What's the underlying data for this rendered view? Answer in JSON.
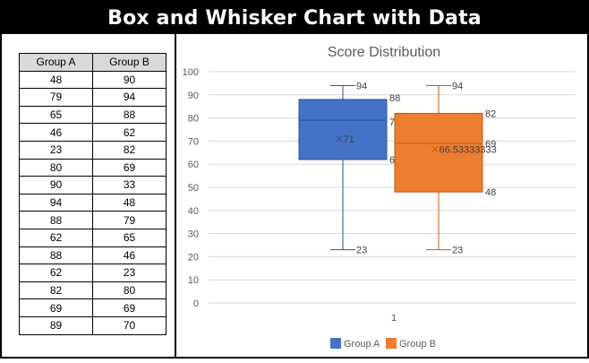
{
  "banner": {
    "title": "Box and Whisker Chart with Data"
  },
  "table": {
    "headers": [
      "Group A",
      "Group B"
    ],
    "rows": [
      [
        "48",
        "90"
      ],
      [
        "79",
        "94"
      ],
      [
        "65",
        "88"
      ],
      [
        "46",
        "62"
      ],
      [
        "23",
        "82"
      ],
      [
        "80",
        "69"
      ],
      [
        "90",
        "33"
      ],
      [
        "94",
        "48"
      ],
      [
        "88",
        "79"
      ],
      [
        "62",
        "65"
      ],
      [
        "88",
        "46"
      ],
      [
        "62",
        "23"
      ],
      [
        "82",
        "80"
      ],
      [
        "69",
        "69"
      ],
      [
        "89",
        "70"
      ]
    ]
  },
  "chart_data": {
    "type": "box",
    "title": "Score Distribution",
    "categories": [
      "1"
    ],
    "ylim": [
      0,
      100
    ],
    "yticks": [
      0,
      10,
      20,
      30,
      40,
      50,
      60,
      70,
      80,
      90,
      100
    ],
    "grid": true,
    "legend_position": "bottom",
    "series": [
      {
        "name": "Group A",
        "color": "#4472c4",
        "stroke": "#2f528f",
        "min": 23,
        "q1": 62,
        "median": 79,
        "q3": 88,
        "max": 94,
        "mean": 71,
        "labels": {
          "max": "94",
          "q3": "88",
          "median": "79",
          "q1": "62",
          "min": "23",
          "mean": "71"
        }
      },
      {
        "name": "Group B",
        "color": "#ed7d31",
        "stroke": "#c55a11",
        "min": 23,
        "q1": 48,
        "median": 69,
        "q3": 82,
        "max": 94,
        "mean": 66.53333333,
        "labels": {
          "max": "94",
          "q3": "82",
          "median": "69",
          "q1": "48",
          "min": "23",
          "mean": "66.53333333"
        }
      }
    ]
  }
}
